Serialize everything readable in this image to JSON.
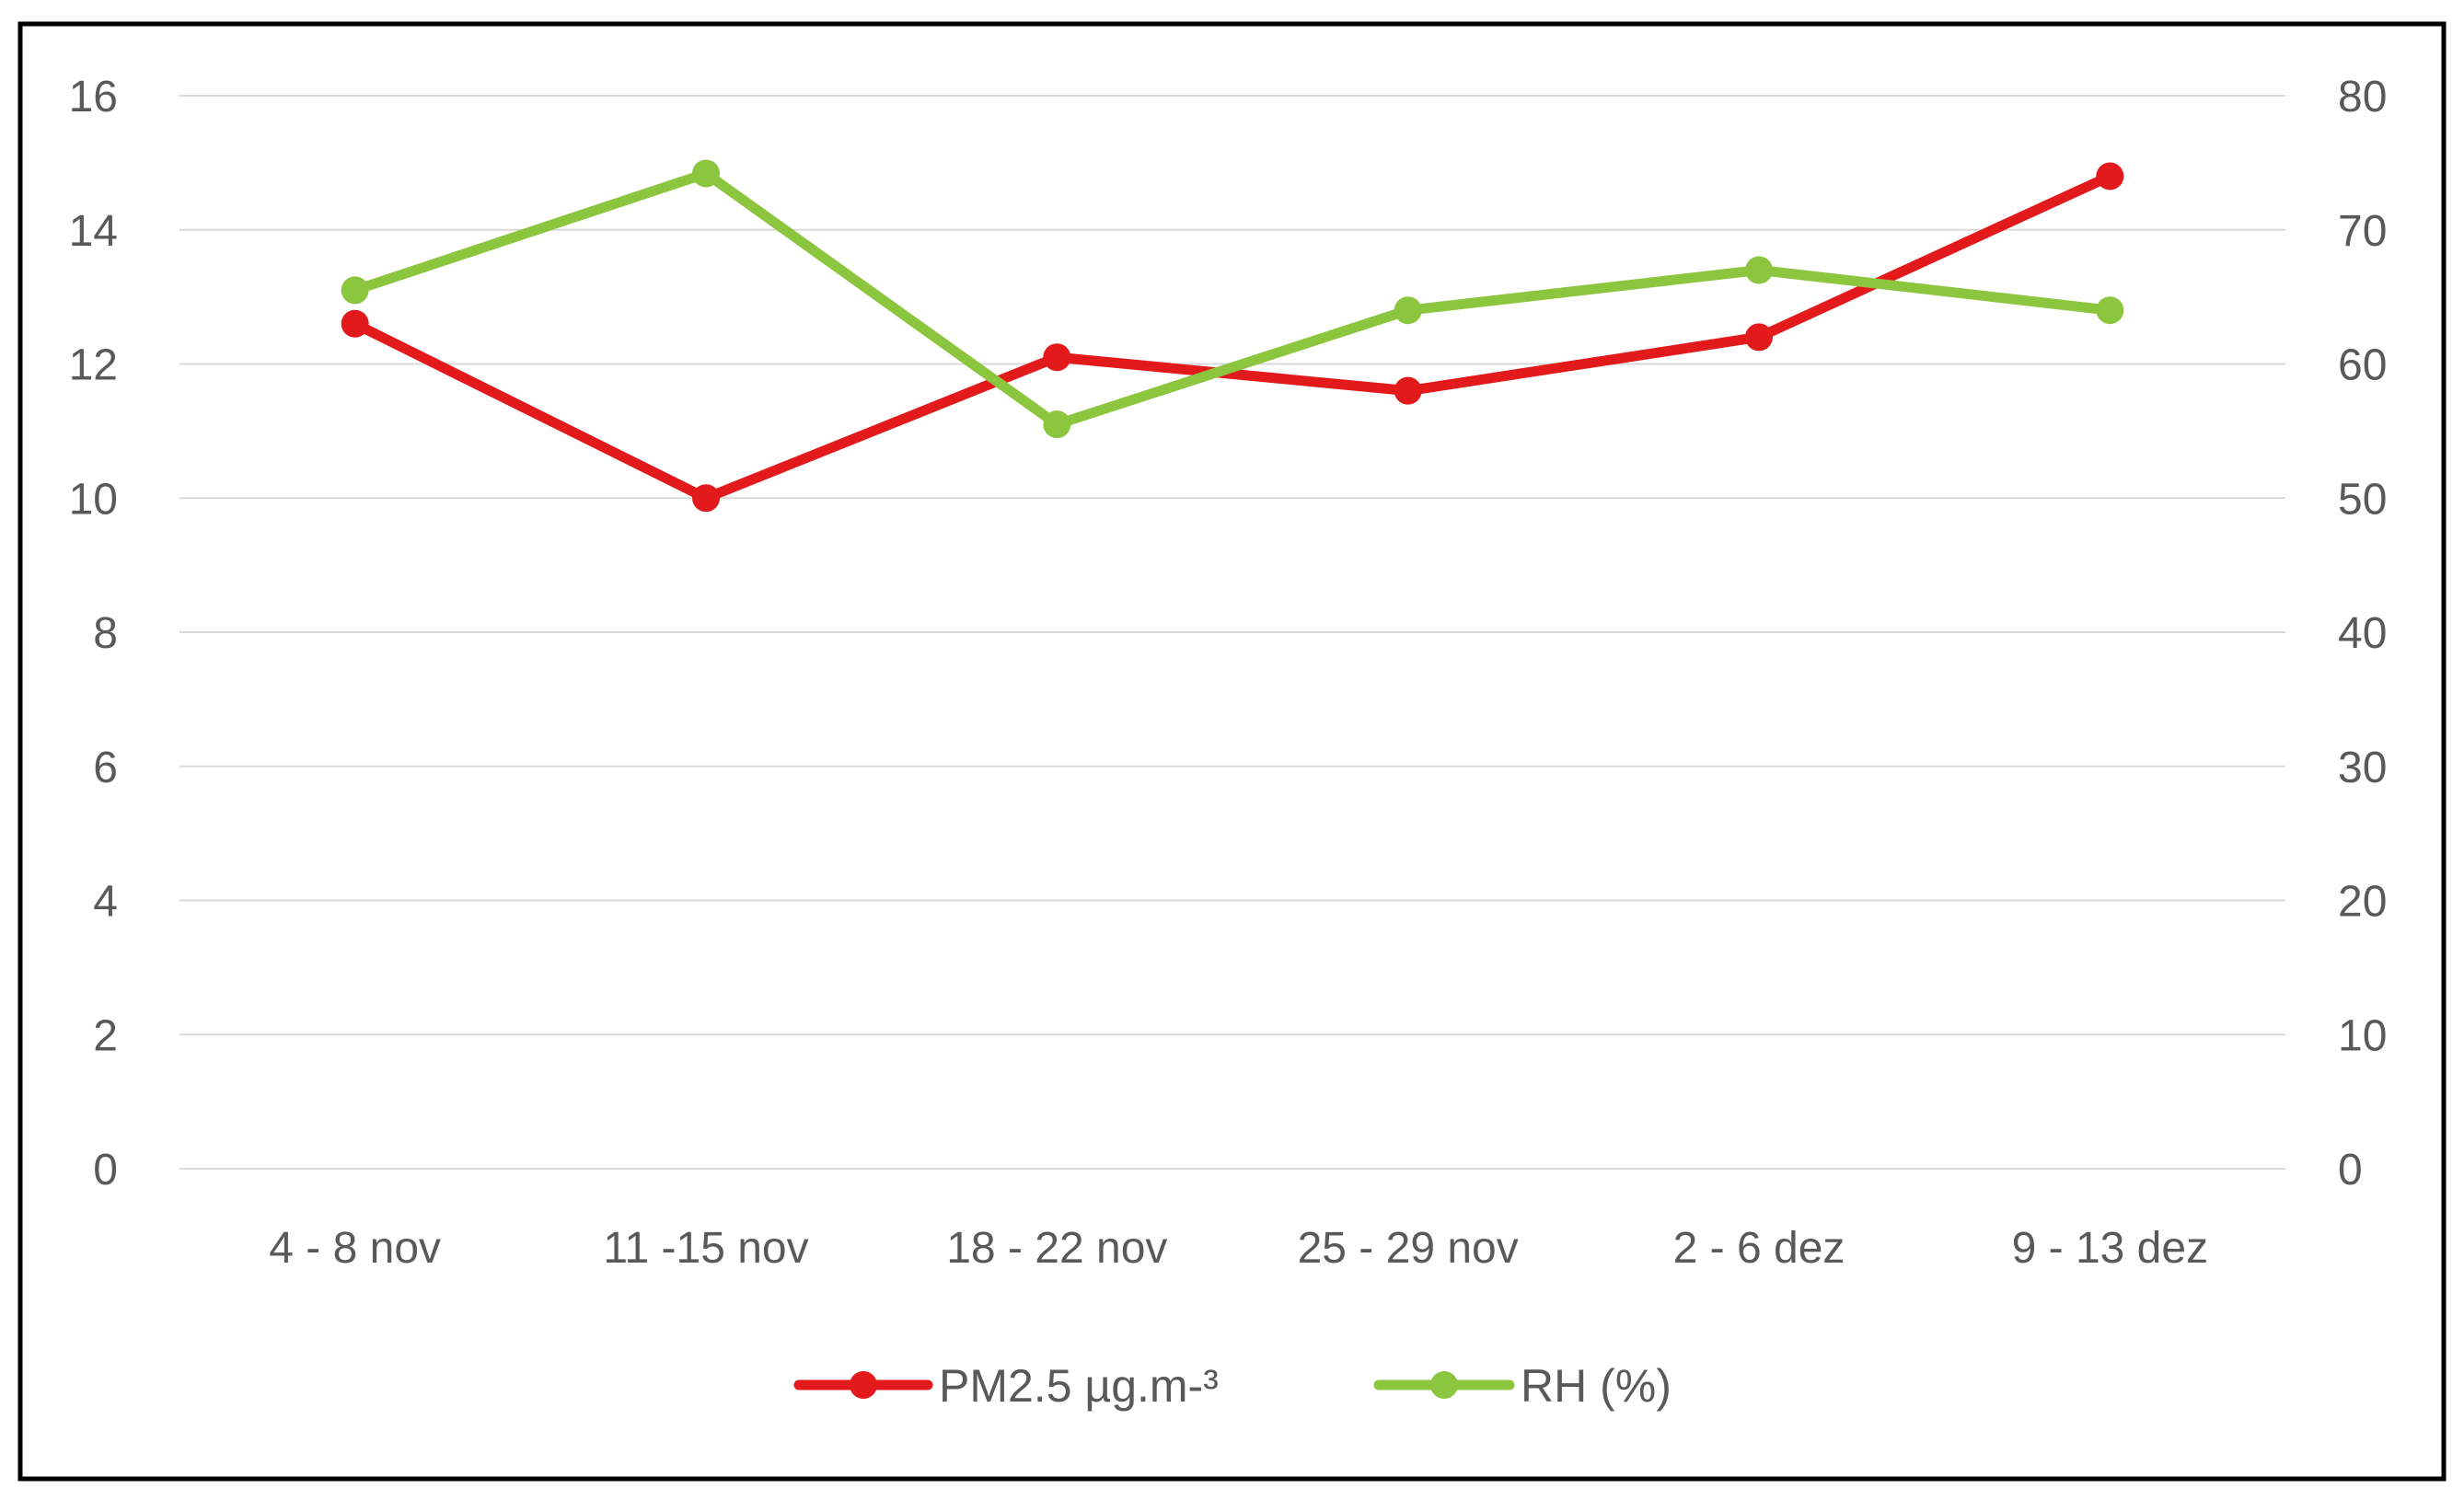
{
  "chart_data": {
    "type": "line",
    "title": "",
    "xlabel": "",
    "ylabel": "",
    "y2label": "",
    "categories": [
      "4 - 8 nov",
      "11 -15 nov",
      "18 - 22 nov",
      "25 - 29 nov",
      "2 - 6 dez",
      "9 - 13 dez"
    ],
    "y_left": {
      "ylim": [
        0,
        16
      ],
      "ticks": [
        "0",
        "2",
        "4",
        "6",
        "8",
        "10",
        "12",
        "14",
        "16"
      ]
    },
    "y_right": {
      "ylim": [
        0,
        80
      ],
      "ticks": [
        "0",
        "10",
        "20",
        "30",
        "40",
        "50",
        "60",
        "70",
        "80"
      ]
    },
    "grid": true,
    "legend_position": "bottom",
    "series": [
      {
        "name": "PM2.5  µg.m-³",
        "axis": "left",
        "color": "#e31a1c",
        "values": [
          12.6,
          10.0,
          12.1,
          11.6,
          12.4,
          14.8
        ]
      },
      {
        "name": "RH (%)",
        "axis": "right",
        "color": "#8cc63f",
        "values": [
          65.5,
          74.2,
          55.5,
          64.0,
          67.0,
          64.0
        ]
      }
    ]
  }
}
